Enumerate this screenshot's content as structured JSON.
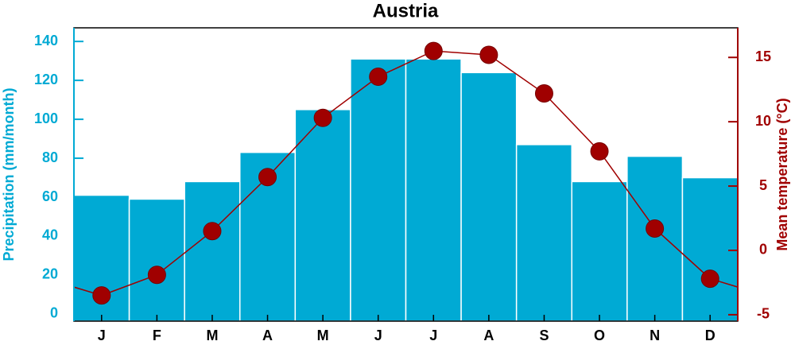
{
  "chart_data": {
    "type": "bar-line",
    "title": "Austria",
    "categories": [
      "J",
      "F",
      "M",
      "A",
      "M",
      "J",
      "J",
      "A",
      "S",
      "O",
      "N",
      "D"
    ],
    "series": [
      {
        "name": "Precipitation (mm/month)",
        "type": "bar",
        "color": "#00aad4",
        "values": [
          61,
          59,
          68,
          83,
          105,
          131,
          131,
          124,
          87,
          68,
          81,
          70
        ]
      },
      {
        "name": "Mean temperature (°C)",
        "type": "line",
        "axis": "y2",
        "color": "#a00000",
        "values": [
          -3.5,
          -1.9,
          1.5,
          5.7,
          10.3,
          13.5,
          15.5,
          15.2,
          12.2,
          7.7,
          1.7,
          -2.2
        ]
      }
    ],
    "ylim": [
      -3.7,
      147
    ],
    "yticks": [
      0,
      20,
      40,
      60,
      80,
      100,
      120,
      140
    ],
    "y2lim": [
      -5.5,
      17.3
    ],
    "y2ticks": [
      -5,
      0,
      5,
      10,
      15
    ]
  }
}
